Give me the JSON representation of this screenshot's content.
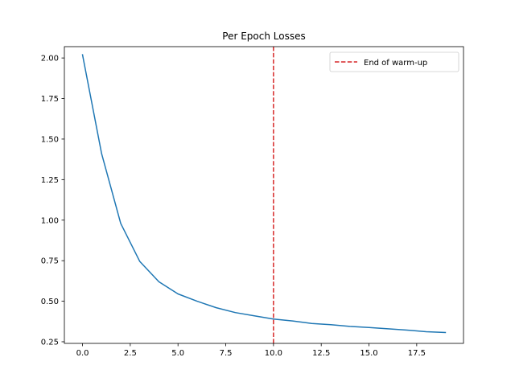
{
  "chart_data": {
    "type": "line",
    "title": "Per Epoch Losses",
    "xlabel": "",
    "ylabel": "",
    "xlim": [
      -0.95,
      19.95
    ],
    "ylim": [
      0.24,
      2.07
    ],
    "xticks": [
      0.0,
      2.5,
      5.0,
      7.5,
      10.0,
      12.5,
      15.0,
      17.5
    ],
    "xtick_labels": [
      "0.0",
      "2.5",
      "5.0",
      "7.5",
      "10.0",
      "12.5",
      "15.0",
      "17.5"
    ],
    "yticks": [
      0.25,
      0.5,
      0.75,
      1.0,
      1.25,
      1.5,
      1.75,
      2.0
    ],
    "ytick_labels": [
      "0.25",
      "0.50",
      "0.75",
      "1.00",
      "1.25",
      "1.50",
      "1.75",
      "2.00"
    ],
    "grid": false,
    "legend_position": "top-right",
    "series": [
      {
        "color": "#1f77b4",
        "x": [
          0,
          1,
          2,
          3,
          4,
          5,
          6,
          7,
          8,
          9,
          10,
          11,
          12,
          13,
          14,
          15,
          16,
          17,
          18,
          19
        ],
        "y": [
          2.02,
          1.41,
          0.98,
          0.745,
          0.62,
          0.545,
          0.5,
          0.46,
          0.43,
          0.41,
          0.39,
          0.378,
          0.363,
          0.355,
          0.345,
          0.338,
          0.33,
          0.322,
          0.312,
          0.307
        ]
      }
    ],
    "annotations": [
      {
        "type": "vline",
        "x": 10,
        "color": "#d62728",
        "style": "dashed",
        "label": "End of warm-up"
      }
    ]
  }
}
